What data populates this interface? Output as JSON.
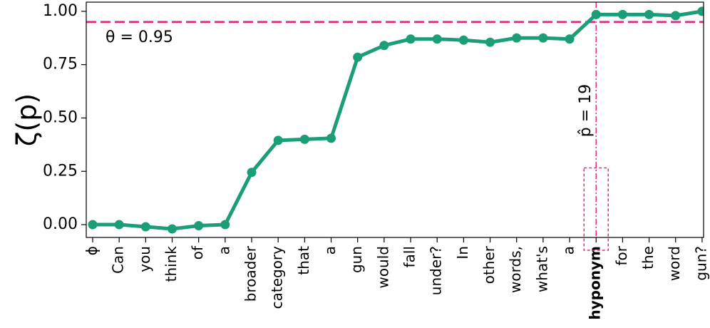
{
  "chart_data": {
    "type": "line",
    "y_label": "ζ(p)",
    "categories": [
      "ϕ",
      "Can",
      "you",
      "think",
      "of",
      "a",
      "broader",
      "category",
      "that",
      "a",
      "gun",
      "would",
      "fall",
      "under?",
      "In",
      "other",
      "words,",
      "what's",
      "a",
      "hyponym",
      "for",
      "the",
      "word",
      "gun?"
    ],
    "series": [
      {
        "name": "ζ(p)",
        "color": "#1b9e77",
        "values": [
          0.0,
          0.0,
          -0.01,
          -0.02,
          -0.005,
          0.0,
          0.245,
          0.395,
          0.4,
          0.405,
          0.785,
          0.84,
          0.87,
          0.87,
          0.865,
          0.855,
          0.875,
          0.875,
          0.87,
          0.985,
          0.985,
          0.985,
          0.98,
          1.0
        ]
      }
    ],
    "ylim": [
      -0.06,
      1.043
    ],
    "yticks": [
      {
        "value": 0,
        "label": "0.00"
      },
      {
        "value": 0.25,
        "label": "0.25"
      },
      {
        "value": 0.5,
        "label": "0.50"
      },
      {
        "value": 0.75,
        "label": "0.75"
      },
      {
        "value": 1,
        "label": "1.00"
      }
    ],
    "threshold": 0.95,
    "threshold_label": "θ = 0.95",
    "p_hat": 19,
    "p_hat_label": "p̂ = 19",
    "highlight_color": "#e7298a"
  }
}
